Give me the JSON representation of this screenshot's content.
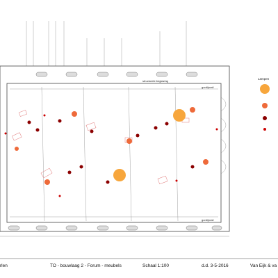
{
  "plan": {
    "top_label": "structurele beglazing",
    "rail_labels": [
      "gordijnrail",
      "gordijnrail"
    ]
  },
  "legend": {
    "title": "Lampen"
  },
  "footer": {
    "cells": [
      "rlen",
      "TO - bouwlaag 2 - Forum - meubels",
      "Schaal 1:100",
      "d.d. 3-5-2016",
      "Van Eijk & va"
    ]
  }
}
